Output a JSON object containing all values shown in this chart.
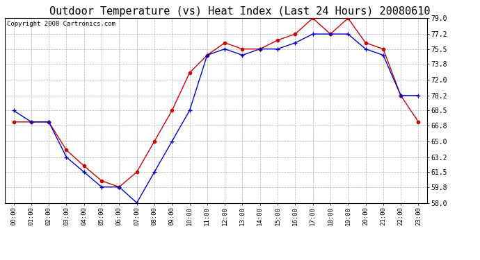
{
  "title": "Outdoor Temperature (vs) Heat Index (Last 24 Hours) 20080610",
  "copyright": "Copyright 2008 Cartronics.com",
  "x_labels": [
    "00:00",
    "01:00",
    "02:00",
    "03:00",
    "04:00",
    "05:00",
    "06:00",
    "07:00",
    "08:00",
    "09:00",
    "10:00",
    "11:00",
    "12:00",
    "13:00",
    "14:00",
    "15:00",
    "16:00",
    "17:00",
    "18:00",
    "19:00",
    "20:00",
    "21:00",
    "22:00",
    "23:00"
  ],
  "temp": [
    68.5,
    67.2,
    67.2,
    63.2,
    61.5,
    59.8,
    59.8,
    58.0,
    61.5,
    65.0,
    68.5,
    74.8,
    75.5,
    74.8,
    75.5,
    75.5,
    76.2,
    77.2,
    77.2,
    77.2,
    75.5,
    74.8,
    70.2,
    70.2
  ],
  "heat_index": [
    67.2,
    67.2,
    67.2,
    64.0,
    62.2,
    60.5,
    59.8,
    61.5,
    65.0,
    68.5,
    72.8,
    74.8,
    76.2,
    75.5,
    75.5,
    76.5,
    77.2,
    79.0,
    77.2,
    79.0,
    76.2,
    75.5,
    70.2,
    67.2
  ],
  "ylim": [
    58.0,
    79.0
  ],
  "yticks": [
    58.0,
    59.8,
    61.5,
    63.2,
    65.0,
    66.8,
    68.5,
    70.2,
    72.0,
    73.8,
    75.5,
    77.2,
    79.0
  ],
  "temp_color": "#0000cc",
  "heat_color": "#cc0000",
  "bg_color": "#ffffff",
  "plot_bg": "#ffffff",
  "grid_color": "#b0b0b0",
  "title_fontsize": 11,
  "copyright_fontsize": 6.5
}
